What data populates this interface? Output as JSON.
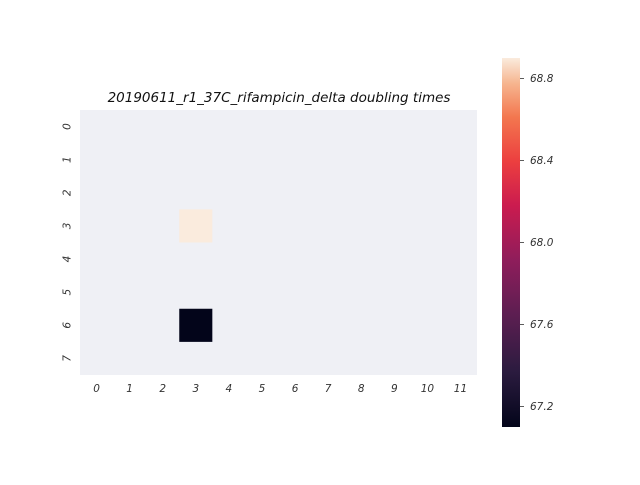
{
  "chart_data": {
    "type": "heatmap",
    "title": "20190611_r1_37C_rifampicin_delta doubling times",
    "x_categories": [
      "0",
      "1",
      "2",
      "3",
      "4",
      "5",
      "6",
      "7",
      "8",
      "9",
      "10",
      "11"
    ],
    "y_categories": [
      "0",
      "1",
      "2",
      "3",
      "4",
      "5",
      "6",
      "7"
    ],
    "cells": [
      {
        "row": 3,
        "col": 3,
        "value": 68.9
      },
      {
        "row": 6,
        "col": 3,
        "value": 67.1
      }
    ],
    "empty_cell_color": "#eff0f5",
    "colorbar": {
      "min": 67.1,
      "max": 68.9,
      "ticks": [
        "67.2",
        "67.6",
        "68.0",
        "68.4",
        "68.8"
      ],
      "colormap": "rocket"
    },
    "grid": false
  }
}
